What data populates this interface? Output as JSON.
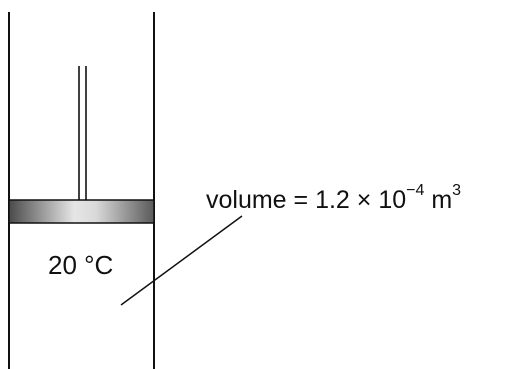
{
  "labels": {
    "temperature": "20 °C",
    "volume_prefix": "volume = 1.2 × 10",
    "volume_exponent": "−4",
    "volume_unit": " m",
    "volume_unit_power": "3"
  },
  "colors": {
    "line": "#111111",
    "piston_dark": "#555555",
    "piston_light": "#e8e8e8"
  }
}
